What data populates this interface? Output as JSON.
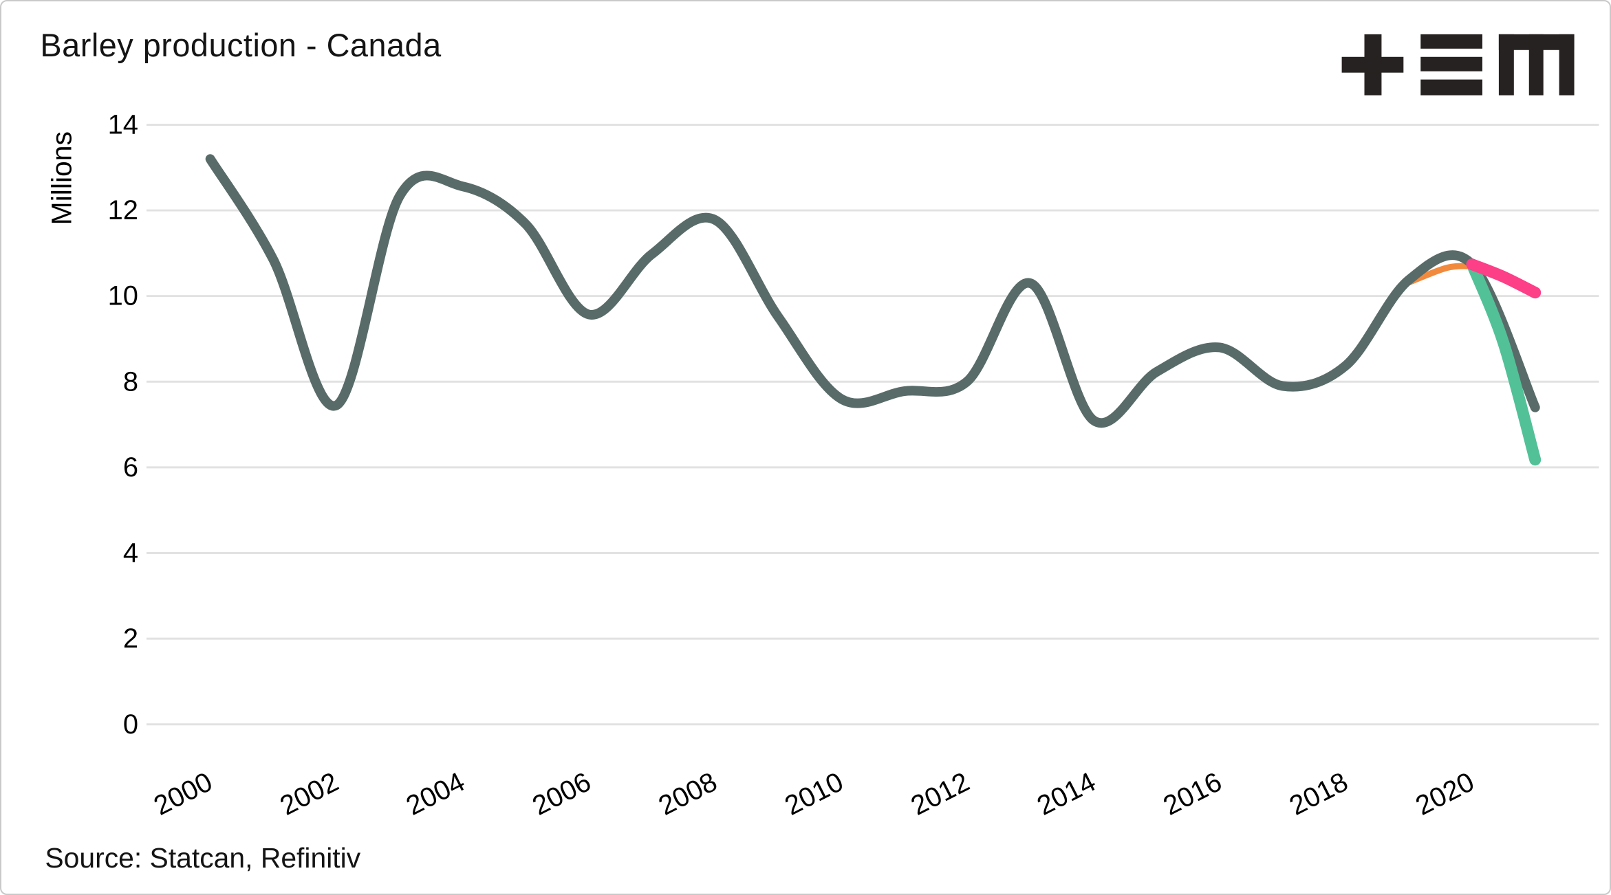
{
  "header": {
    "title": "Barley production - Canada"
  },
  "logo": {
    "name": "trading-economics-logo",
    "color": "#262221"
  },
  "source": {
    "label": "Source: Statcan, Refinitiv"
  },
  "colors": {
    "main_line": "#586b68",
    "scenario_pink": "#fc3f87",
    "scenario_green": "#52c198",
    "overlap_orange": "#f18a3d",
    "gridline": "#e2e2e2",
    "text": "#000000"
  },
  "chart_data": {
    "type": "line",
    "title": "Barley production - Canada",
    "xlabel": "",
    "ylabel": "Millions",
    "ylim": [
      0,
      14
    ],
    "xlim": [
      2000,
      2021.3
    ],
    "y_ticks": [
      14,
      12,
      10,
      8,
      6,
      4,
      2,
      0
    ],
    "x_ticks": [
      2000,
      2002,
      2004,
      2006,
      2008,
      2010,
      2012,
      2014,
      2016,
      2018,
      2020
    ],
    "grid": "horizontal-only",
    "legend": "none",
    "x_tick_rotation_deg": -27,
    "series": [
      {
        "name": "overlap-orange-estimate",
        "color": "#f18a3d",
        "width": 9,
        "x": [
          2019,
          2019.6,
          2020
        ],
        "values": [
          10.32,
          10.66,
          10.7
        ]
      },
      {
        "name": "barley-production-actuals",
        "color": "#586b68",
        "width": 14,
        "x": [
          2000,
          2001,
          2002,
          2003,
          2004,
          2005,
          2006,
          2007,
          2008,
          2009,
          2010,
          2011,
          2012,
          2013,
          2014,
          2015,
          2016,
          2017,
          2018,
          2019,
          2020,
          2021
        ],
        "values": [
          13.2,
          10.85,
          7.45,
          12.33,
          12.56,
          11.68,
          9.57,
          10.98,
          11.78,
          9.52,
          7.6,
          7.78,
          8.01,
          10.3,
          7.1,
          8.23,
          8.8,
          7.9,
          8.38,
          10.38,
          10.74,
          7.4
        ]
      },
      {
        "name": "scenario-green",
        "color": "#52c198",
        "width": 17,
        "x": [
          2020,
          2020.5,
          2021
        ],
        "values": [
          10.74,
          8.9,
          6.18
        ]
      },
      {
        "name": "scenario-pink",
        "color": "#fc3f87",
        "width": 17,
        "x": [
          2020,
          2020.5,
          2021
        ],
        "values": [
          10.74,
          10.45,
          10.08
        ]
      }
    ]
  }
}
